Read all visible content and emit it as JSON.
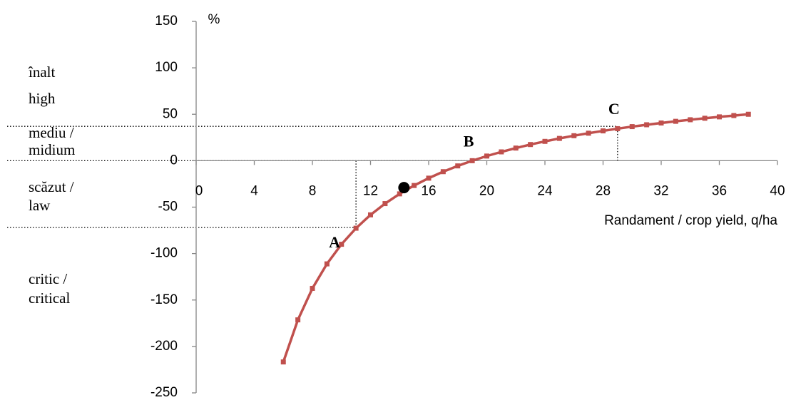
{
  "chart_data": {
    "type": "line",
    "y_label": "%",
    "x_label": "Randament / crop yield, q/ha",
    "xlim": [
      0,
      40
    ],
    "xticks": [
      0,
      4,
      8,
      12,
      16,
      20,
      24,
      28,
      32,
      36,
      40
    ],
    "ylim": [
      -250,
      150
    ],
    "yticks": [
      -250,
      -200,
      -150,
      -100,
      -50,
      0,
      50,
      100,
      150
    ],
    "zones": [
      [
        "înalt",
        "high"
      ],
      [
        "mediu /",
        "midium"
      ],
      [
        "scăzut /",
        "law"
      ],
      [
        "critic /",
        "critical"
      ]
    ],
    "series": [
      {
        "color": "#c0504d",
        "x": [
          6,
          7,
          8,
          9,
          10,
          11,
          12,
          13,
          14,
          15,
          16,
          17,
          18,
          19,
          20,
          21,
          22,
          23,
          24,
          25,
          26,
          27,
          28,
          29,
          30,
          31,
          32,
          33,
          34,
          35,
          36,
          37,
          38
        ],
        "values": [
          -216.7,
          -171.4,
          -137.5,
          -111.1,
          -90.0,
          -72.7,
          -58.3,
          -46.2,
          -35.7,
          -26.7,
          -18.8,
          -11.8,
          -5.6,
          0.0,
          5.0,
          9.5,
          13.6,
          17.4,
          20.8,
          24.0,
          26.9,
          29.6,
          32.1,
          34.5,
          36.7,
          38.7,
          40.6,
          42.4,
          44.1,
          45.7,
          47.2,
          48.6,
          50.0
        ]
      }
    ],
    "points": [
      {
        "label": "A",
        "x": 11,
        "y": -72
      },
      {
        "label": "B",
        "x": 19,
        "y": 0
      },
      {
        "label": "C",
        "x": 29,
        "y": 37
      }
    ],
    "marker": {
      "x": 14.3,
      "y": -29,
      "color": "#000000"
    }
  }
}
